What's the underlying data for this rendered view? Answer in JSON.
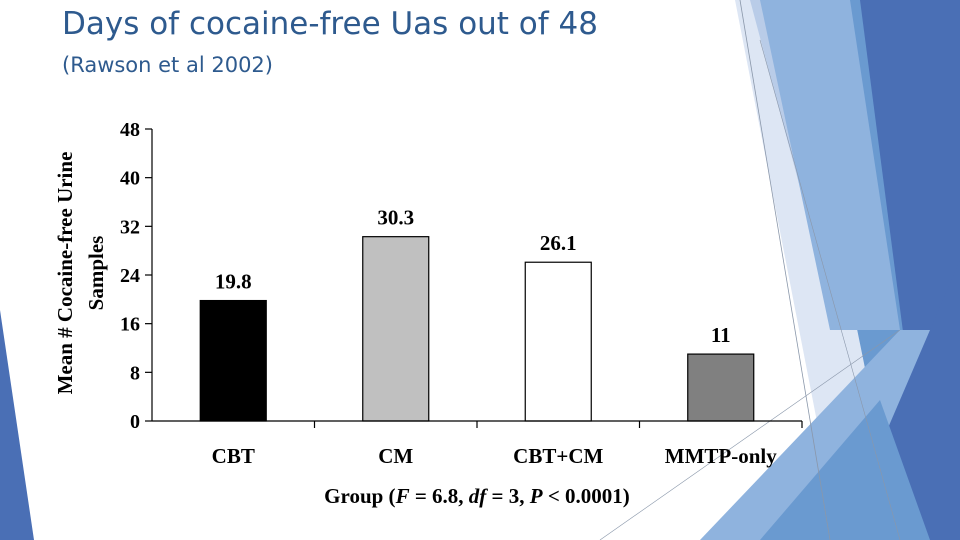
{
  "slide": {
    "title": "Days of cocaine-free Uas out of 48",
    "subtitle": "(Rawson et al 2002)"
  },
  "theme": {
    "accent": "#2e5a8e",
    "deco_colors": [
      "#4a6fb5",
      "#6a9ad0",
      "#8fb3de",
      "#b9cce8",
      "#dde6f4"
    ]
  },
  "chart_data": {
    "type": "bar",
    "categories": [
      "CBT",
      "CM",
      "CBT+CM",
      "MMTP-only"
    ],
    "values": [
      19.8,
      30.3,
      26.1,
      11
    ],
    "data_labels": [
      "19.8",
      "30.3",
      "26.1",
      "11"
    ],
    "bar_colors": [
      "#000000",
      "#c0c0c0",
      "#ffffff",
      "#808080"
    ],
    "ylabel_line1": "Mean # Cocaine-free Urine",
    "ylabel_line2": "Samples",
    "xlabel_parts": [
      "Group (",
      "F",
      " = 6.8, ",
      "df",
      " = 3, ",
      "P",
      " < 0.0001)"
    ],
    "ylim": [
      0,
      48
    ],
    "yticks": [
      "0",
      "8",
      "16",
      "24",
      "32",
      "40",
      "48"
    ],
    "grid": false,
    "legend": "none"
  }
}
